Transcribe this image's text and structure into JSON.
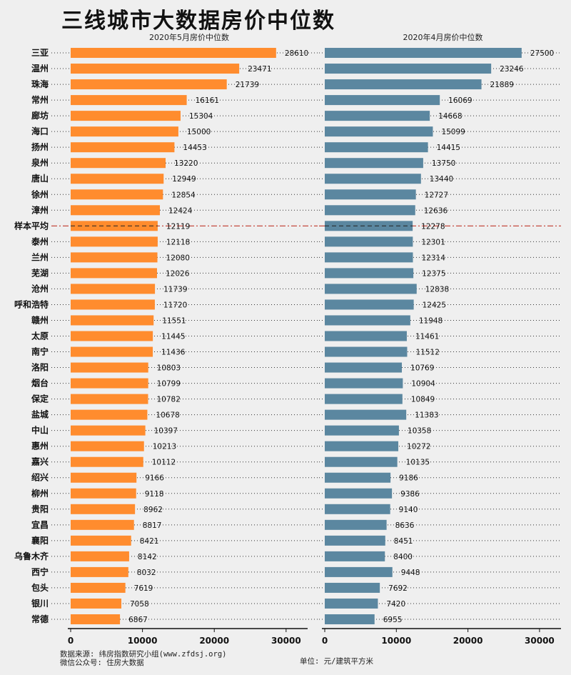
{
  "title": "三线城市大数据房价中位数",
  "footer": {
    "source": "数据来源: 纬房指数研究小组(www.zfdsj.org)",
    "wechat": "微信公众号: 住房大数据",
    "unit": "单位: 元/建筑平方米"
  },
  "chart_data": {
    "type": "bar",
    "orientation": "horizontal",
    "categories": [
      "三亚",
      "温州",
      "珠海",
      "常州",
      "廊坊",
      "海口",
      "扬州",
      "泉州",
      "唐山",
      "徐州",
      "漳州",
      "样本平均",
      "泰州",
      "兰州",
      "芜湖",
      "沧州",
      "呼和浩特",
      "赣州",
      "太原",
      "南宁",
      "洛阳",
      "烟台",
      "保定",
      "盐城",
      "中山",
      "惠州",
      "嘉兴",
      "绍兴",
      "柳州",
      "贵阳",
      "宜昌",
      "襄阳",
      "乌鲁木齐",
      "西宁",
      "包头",
      "银川",
      "常德"
    ],
    "average_category": "样本平均",
    "series": [
      {
        "name": "2020年5月房价中位数",
        "color": "#ff8c2e",
        "values": [
          28610,
          23471,
          21739,
          16161,
          15304,
          15000,
          14453,
          13220,
          12949,
          12854,
          12424,
          12119,
          12118,
          12080,
          12026,
          11739,
          11720,
          11551,
          11445,
          11436,
          10803,
          10799,
          10782,
          10678,
          10397,
          10213,
          10112,
          9166,
          9118,
          8962,
          8817,
          8421,
          8142,
          8032,
          7619,
          7058,
          6867
        ]
      },
      {
        "name": "2020年4月房价中位数",
        "color": "#5b87a0",
        "values": [
          27500,
          23246,
          21889,
          16069,
          14668,
          15099,
          14415,
          13750,
          13440,
          12727,
          12636,
          12278,
          12301,
          12314,
          12375,
          12838,
          12425,
          11948,
          11461,
          11512,
          10769,
          10904,
          10849,
          11383,
          10358,
          10272,
          10135,
          9186,
          9386,
          9140,
          8636,
          8451,
          8400,
          9448,
          7692,
          7420,
          6955
        ]
      }
    ],
    "xlim": [
      0,
      33000
    ],
    "xticks": [
      0,
      10000,
      20000,
      30000
    ],
    "xtick_labels": [
      "0",
      "10000",
      "20000",
      "30000"
    ],
    "average_line_color": "#c0392b",
    "grid": "dotted leader lines per row"
  }
}
